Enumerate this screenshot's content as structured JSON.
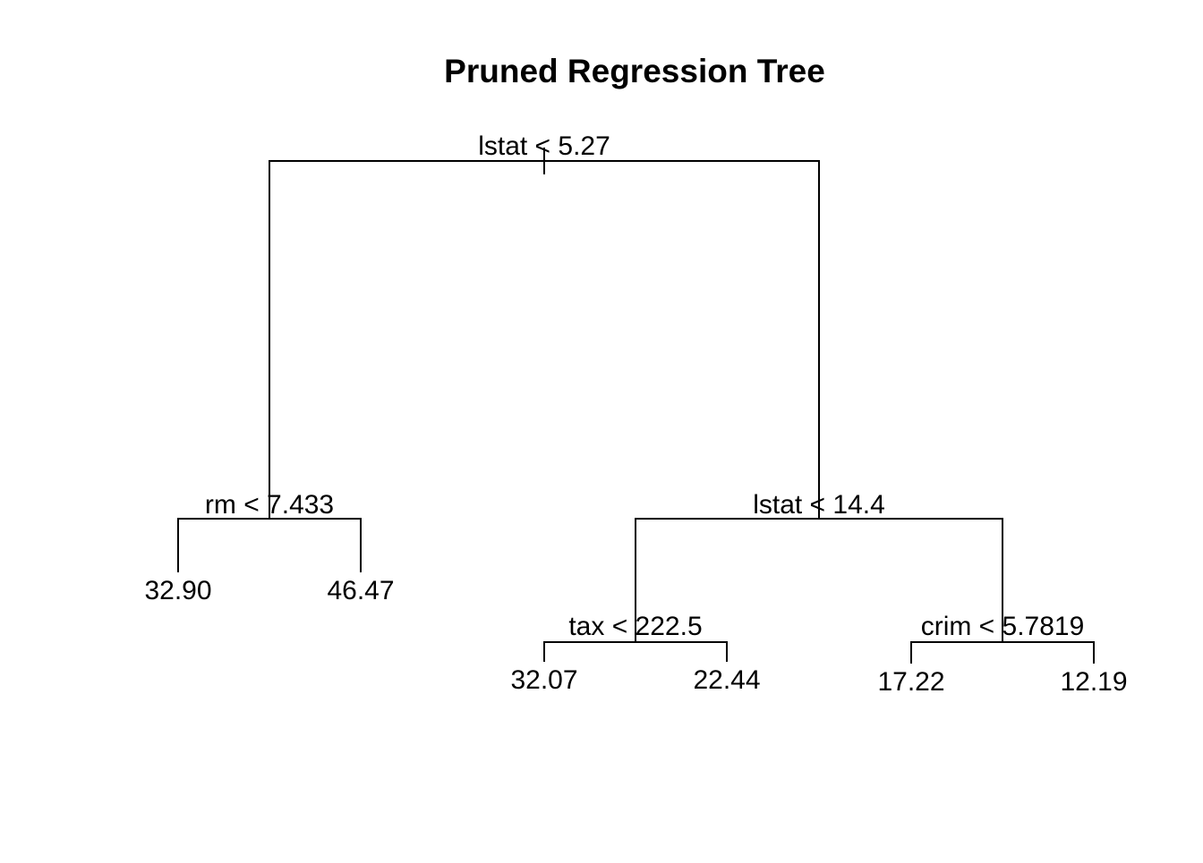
{
  "title": "Pruned Regression Tree",
  "tree": {
    "split": "lstat < 5.27",
    "left": {
      "split": "rm < 7.433",
      "left": {
        "value": "32.90"
      },
      "right": {
        "value": "46.47"
      }
    },
    "right": {
      "split": "lstat < 14.4",
      "left": {
        "split": "tax < 222.5",
        "left": {
          "value": "32.07"
        },
        "right": {
          "value": "22.44"
        }
      },
      "right": {
        "split": "crim < 5.7819",
        "left": {
          "value": "17.22"
        },
        "right": {
          "value": "12.19"
        }
      }
    }
  }
}
